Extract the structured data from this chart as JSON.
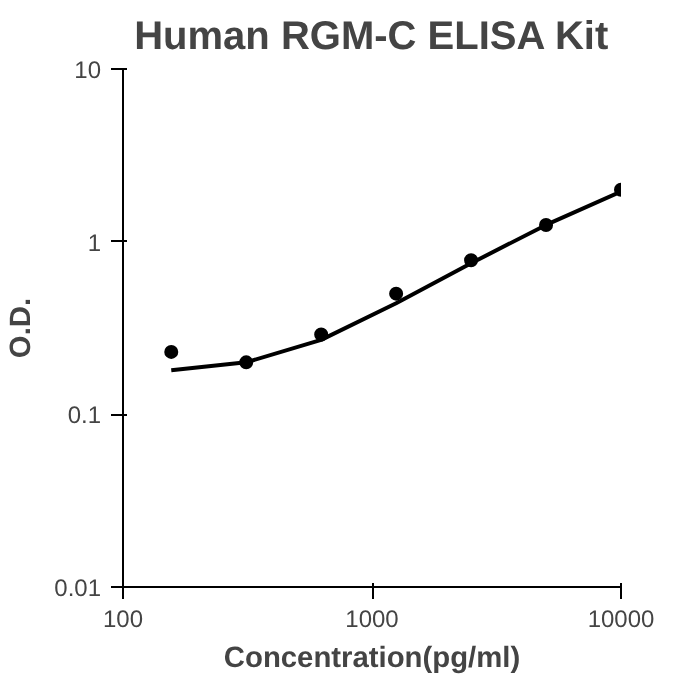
{
  "chart_data": {
    "type": "scatter",
    "title": "Human RGM-C ELISA Kit",
    "xlabel": "Concentration(pg/ml)",
    "ylabel": "O.D.",
    "log": "xy",
    "grid": false,
    "xlim": [
      100,
      10000
    ],
    "xticks": [
      100,
      1000,
      10000
    ],
    "ylim": [
      0.01,
      10
    ],
    "yticks": [
      0.01,
      0.1,
      1,
      10
    ],
    "x": [
      156.25,
      312.5,
      625,
      1250,
      2500,
      5000,
      10000
    ],
    "series": [
      {
        "color": "#000000",
        "marker": "circle",
        "values": [
          0.23,
          0.2,
          0.29,
          0.5,
          0.78,
          1.25,
          2.0
        ]
      },
      {
        "type": "line",
        "color": "#000000",
        "line_style": "solid",
        "x": [
          156.25,
          312.5,
          625,
          1250,
          2500,
          5000,
          10000
        ],
        "values": [
          0.18,
          0.2,
          0.27,
          0.44,
          0.75,
          1.25,
          1.95
        ]
      }
    ]
  }
}
